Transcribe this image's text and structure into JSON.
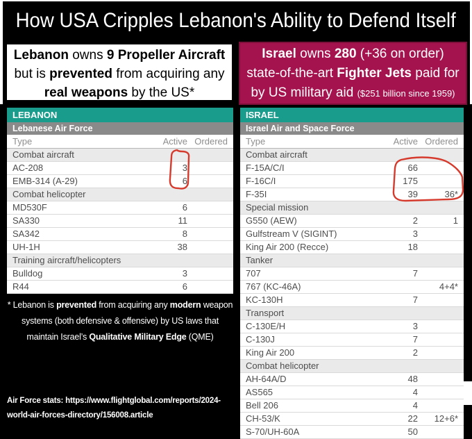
{
  "title": "How USA Cripples Lebanon's Ability to Defend Itself",
  "colors": {
    "teal": "#1A9C8C",
    "maroon": "#A4134E",
    "circle_red": "#D53A2C",
    "section_bg": "#EAEAEA",
    "page_bg": "#000000"
  },
  "callouts": {
    "left": {
      "lines": [
        [
          {
            "t": "Lebanon",
            "b": 1
          },
          {
            "t": " owns ",
            "b": 0
          },
          {
            "t": "9 Propeller Aircraft",
            "b": 1
          }
        ],
        [
          {
            "t": "but is ",
            "b": 0
          },
          {
            "t": "prevented",
            "b": 1
          },
          {
            "t": " from acquiring any",
            "b": 0
          }
        ],
        [
          {
            "t": "real weapons",
            "b": 1
          },
          {
            "t": " by the US*",
            "b": 0
          }
        ]
      ]
    },
    "right": {
      "lines": [
        [
          {
            "t": "Israel",
            "b": 1
          },
          {
            "t": " owns ",
            "b": 0
          },
          {
            "t": "280",
            "b": 1
          },
          {
            "t": " (+36 on order)",
            "b": 0
          }
        ],
        [
          {
            "t": "state-of-the-art ",
            "b": 0
          },
          {
            "t": "Fighter Jets",
            "b": 1
          },
          {
            "t": " paid for",
            "b": 0
          }
        ],
        [
          {
            "t": "by US military aid ",
            "b": 0
          },
          {
            "t": "($251 billion since 1959)",
            "b": 0,
            "s": 1
          }
        ]
      ]
    }
  },
  "tables": [
    {
      "country": "LEBANON",
      "force": "Lebanese Air Force",
      "columns": [
        "Type",
        "Active",
        "Ordered"
      ],
      "rows": [
        {
          "section": "Combat aircraft"
        },
        {
          "type": "AC-208",
          "active": "3",
          "ordered": ""
        },
        {
          "type": "EMB-314 (A-29)",
          "active": "6",
          "ordered": ""
        },
        {
          "section": "Combat helicopter"
        },
        {
          "type": "MD530F",
          "active": "6",
          "ordered": ""
        },
        {
          "type": "SA330",
          "active": "11",
          "ordered": ""
        },
        {
          "type": "SA342",
          "active": "8",
          "ordered": ""
        },
        {
          "type": "UH-1H",
          "active": "38",
          "ordered": ""
        },
        {
          "section": "Training aircraft/helicopters"
        },
        {
          "type": "Bulldog",
          "active": "3",
          "ordered": ""
        },
        {
          "type": "R44",
          "active": "6",
          "ordered": ""
        }
      ]
    },
    {
      "country": "ISRAEL",
      "force": "Israel Air and Space Force",
      "columns": [
        "Type",
        "Active",
        "Ordered"
      ],
      "rows": [
        {
          "section": "Combat aircraft"
        },
        {
          "type": "F-15A/C/I",
          "active": "66",
          "ordered": ""
        },
        {
          "type": "F-16C/I",
          "active": "175",
          "ordered": ""
        },
        {
          "type": "F-35I",
          "active": "39",
          "ordered": "36*"
        },
        {
          "section": "Special mission"
        },
        {
          "type": "G550 (AEW)",
          "active": "2",
          "ordered": "1"
        },
        {
          "type": "Gulfstream V (SIGINT)",
          "active": "3",
          "ordered": ""
        },
        {
          "type": "King Air 200 (Recce)",
          "active": "18",
          "ordered": ""
        },
        {
          "section": "Tanker"
        },
        {
          "type": "707",
          "active": "7",
          "ordered": ""
        },
        {
          "type": "767 (KC-46A)",
          "active": "",
          "ordered": "4+4*"
        },
        {
          "type": "KC-130H",
          "active": "7",
          "ordered": ""
        },
        {
          "section": "Transport"
        },
        {
          "type": "C-130E/H",
          "active": "3",
          "ordered": ""
        },
        {
          "type": "C-130J",
          "active": "7",
          "ordered": ""
        },
        {
          "type": "King Air 200",
          "active": "2",
          "ordered": ""
        },
        {
          "section": "Combat helicopter"
        },
        {
          "type": "AH-64A/D",
          "active": "48",
          "ordered": ""
        },
        {
          "type": "AS565",
          "active": "4",
          "ordered": ""
        },
        {
          "type": "Bell 206",
          "active": "4",
          "ordered": ""
        },
        {
          "type": "CH-53/K",
          "active": "22",
          "ordered": "12+6*"
        },
        {
          "type": "S-70/UH-60A",
          "active": "50",
          "ordered": ""
        }
      ]
    }
  ],
  "annotations": [
    {
      "name": "circled-lebanon-combat-aircraft-counts",
      "values": [
        "3",
        "6"
      ]
    },
    {
      "name": "circled-israel-fighter-jet-counts",
      "values": [
        "66",
        "175",
        "39",
        "36*"
      ]
    }
  ],
  "footnote": {
    "lines": [
      [
        {
          "t": "* Lebanon is ",
          "b": 0
        },
        {
          "t": "prevented",
          "b": 1
        },
        {
          "t": " from acquiring any ",
          "b": 0
        },
        {
          "t": "modern",
          "b": 1
        },
        {
          "t": " weapon",
          "b": 0
        }
      ],
      [
        {
          "t": "systems (both defensive & offensive) by US laws that",
          "b": 0
        }
      ],
      [
        {
          "t": "maintain Israel’s ",
          "b": 0
        },
        {
          "t": "Qualitative Military Edge",
          "b": 1
        },
        {
          "t": " (QME)",
          "b": 0
        }
      ]
    ]
  },
  "source": {
    "lines": [
      [
        {
          "t": "Air Force stats: https://www.flightglobal.com/reports/2024-",
          "b": 0
        }
      ],
      [
        {
          "t": "world-air-forces-directory/156008.article",
          "b": 0
        }
      ]
    ]
  }
}
